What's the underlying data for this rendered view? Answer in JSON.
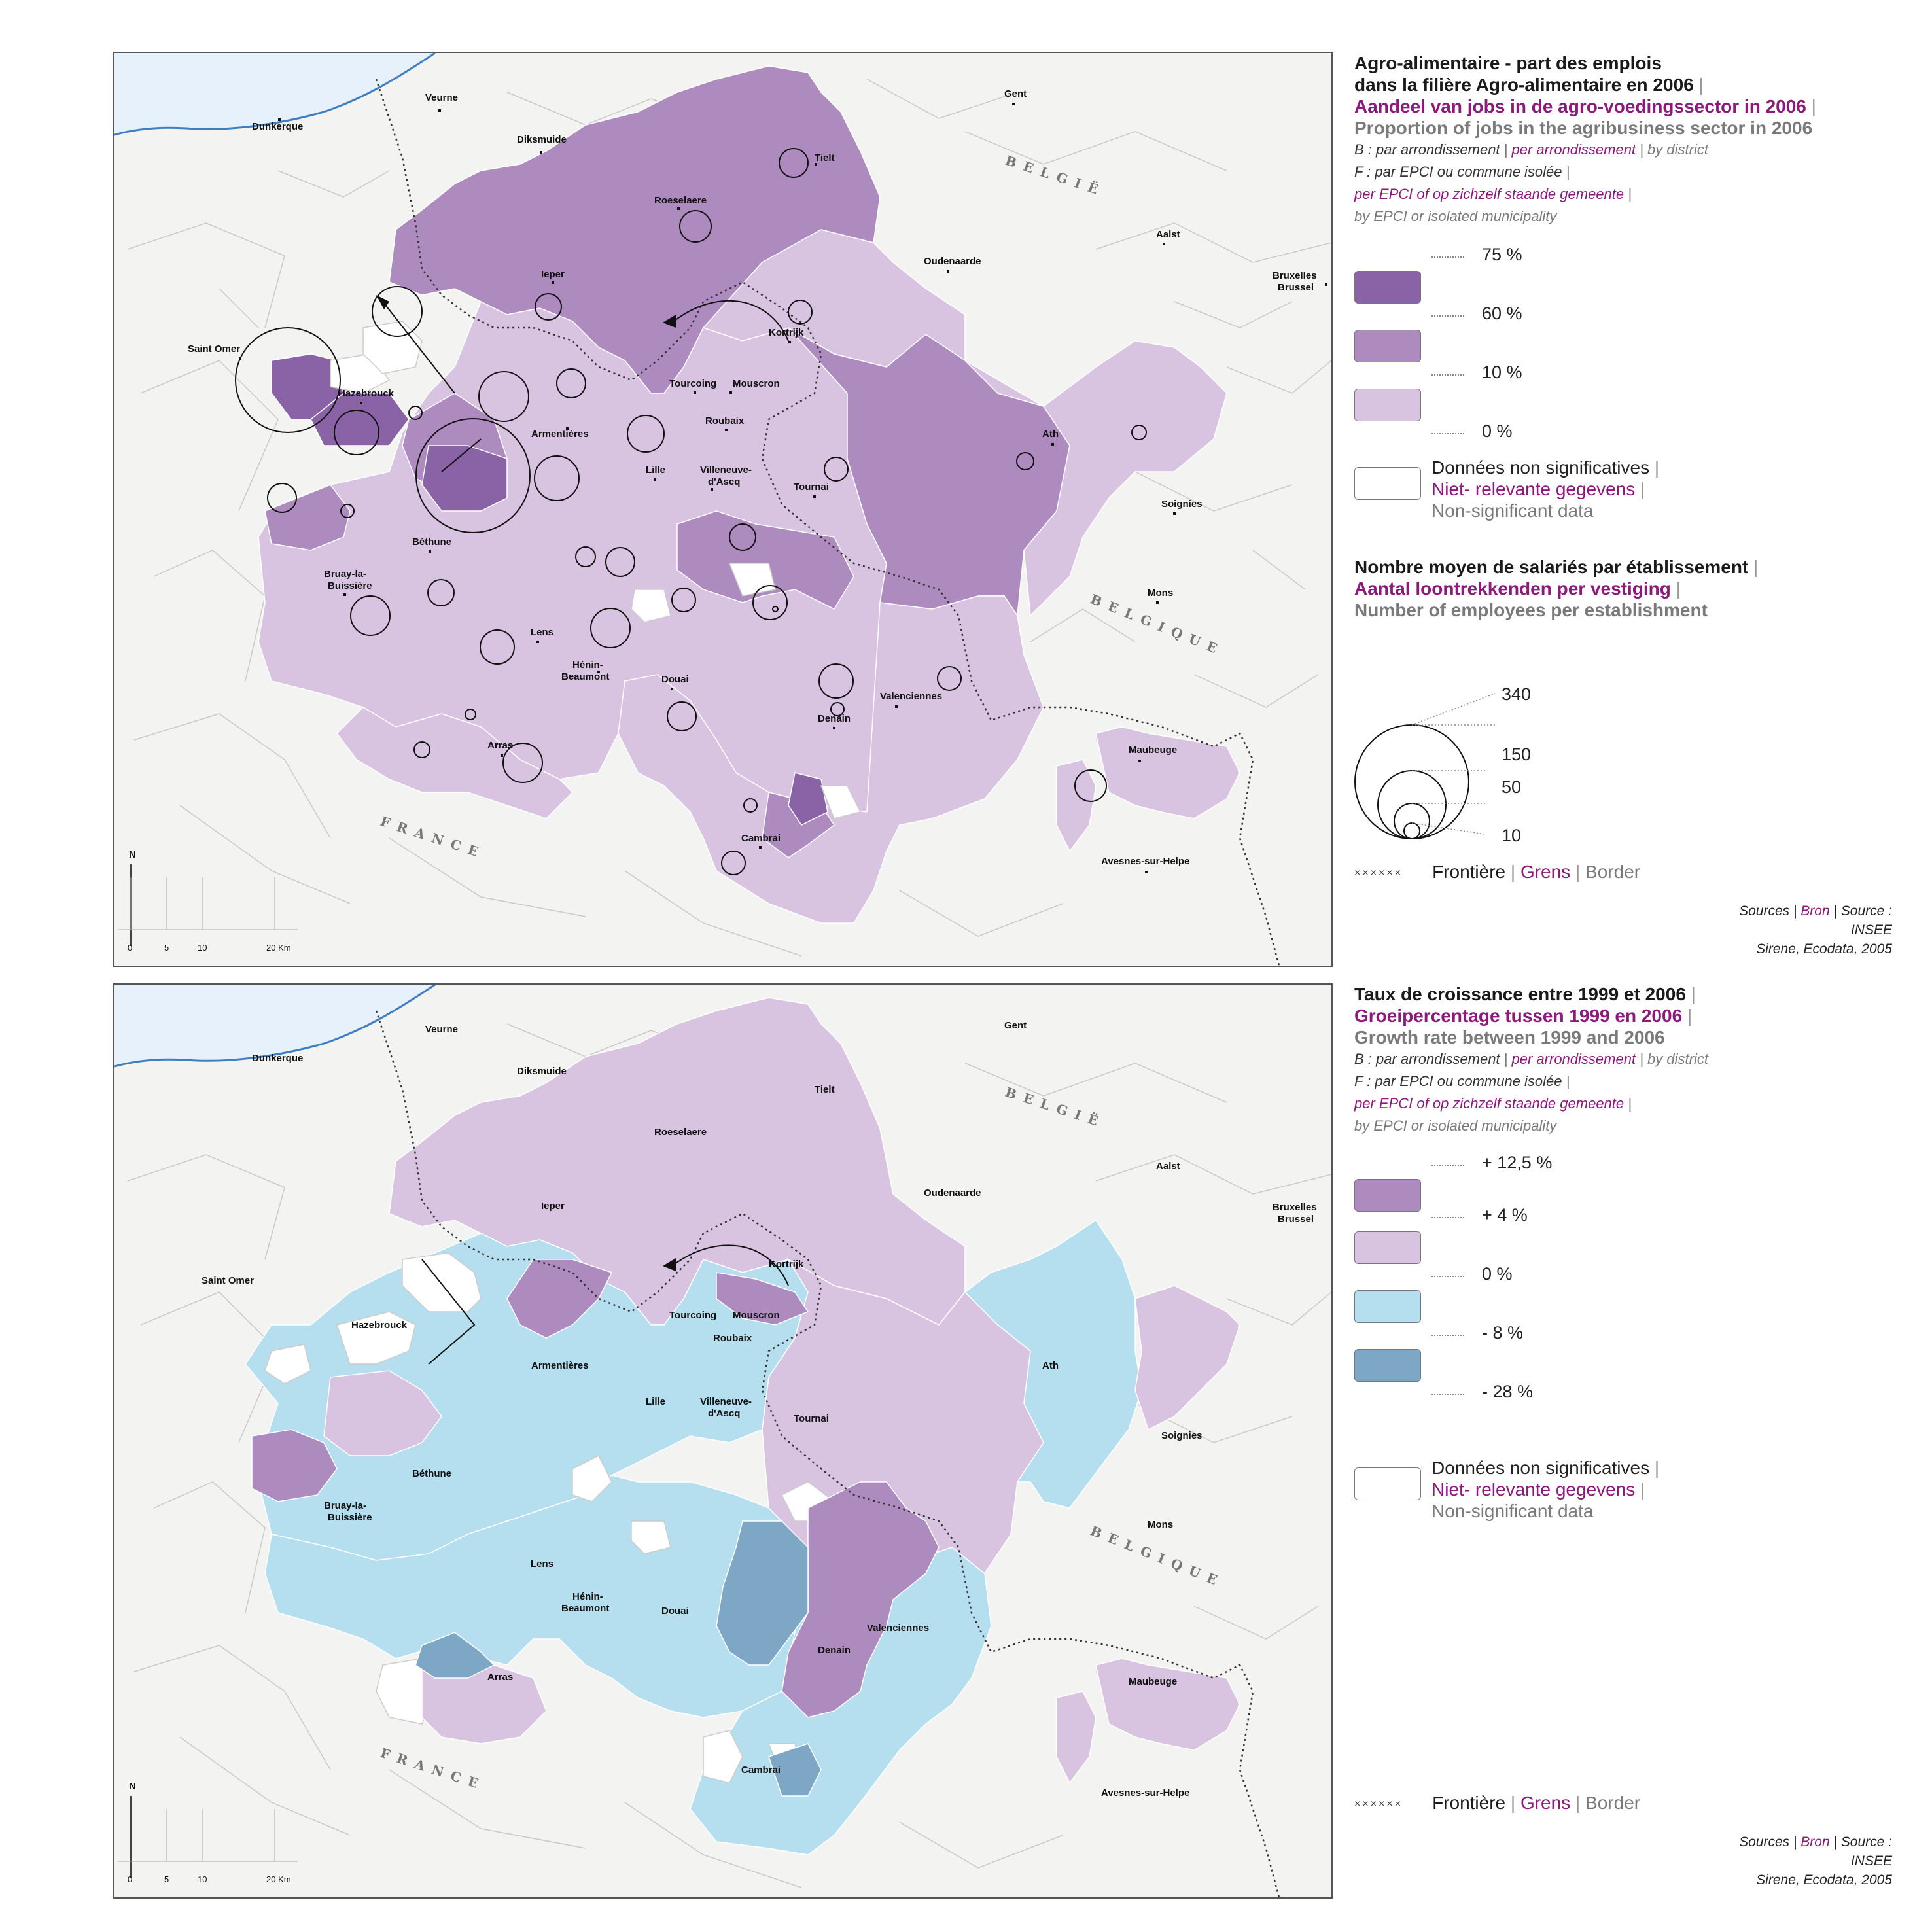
{
  "map1": {
    "legend": {
      "title_fr_1": "Agro-alimentaire - part des emplois",
      "title_fr_2": "dans la filière Agro-alimentaire en 2006",
      "title_nl": "Aandeel van jobs in de agro-voedingssector in 2006",
      "title_en": "Proportion of jobs in the agribusiness sector in 2006",
      "b_fr": "B : par arrondissement",
      "b_nl": "per arrondissement",
      "b_en": "by district",
      "f_fr": "F : par EPCI ou commune isolée",
      "f_nl": "per EPCI of op zichzelf staande gemeente",
      "f_en": "by EPCI or isolated municipality",
      "classes": [
        {
          "label": "75 %",
          "color": "#8a63a6"
        },
        {
          "label": "60 %",
          "color": "#ae8bbf"
        },
        {
          "label": "10 %",
          "color": "#d8c3e0"
        },
        {
          "label": "0 %",
          "color": null
        }
      ],
      "nodata_fr": "Données non significatives",
      "nodata_nl": "Niet- relevante gegevens",
      "nodata_en": "Non-significant data",
      "circles_title_fr": "Nombre moyen de salariés par établissement",
      "circles_title_nl": "Aantal loontrekkenden per vestiging",
      "circles_title_en": "Number of employees per establishment",
      "circle_values": [
        "340",
        "150",
        "50",
        "10"
      ],
      "border_fr": "Frontière",
      "border_nl": "Grens",
      "border_en": "Border",
      "src_1_fr": "Sources",
      "src_1_nl": "Bron",
      "src_1_en": "Source :",
      "src_2": "INSEE",
      "src_3": "Sirene, Ecodata, 2005"
    }
  },
  "map2": {
    "legend": {
      "title_fr": "Taux de croissance entre 1999 et 2006",
      "title_nl": "Groeipercentage tussen 1999 en 2006",
      "title_en": "Growth rate between 1999 and 2006",
      "b_fr": "B : par arrondissement",
      "b_nl": "per arrondissement",
      "b_en": "by district",
      "f_fr": "F : par EPCI ou commune isolée",
      "f_nl": "per EPCI of op zichzelf staande gemeente",
      "f_en": "by EPCI or isolated municipality",
      "classes": [
        {
          "label": "+ 12,5 %",
          "color": "#ae8bbf"
        },
        {
          "label": "+ 4 %",
          "color": "#d8c3e0"
        },
        {
          "label": "0 %",
          "color": "#b5dfee"
        },
        {
          "label": "- 8 %",
          "color": "#7ea7c6"
        },
        {
          "label": "- 28 %",
          "color": null
        }
      ],
      "nodata_fr": "Données non significatives",
      "nodata_nl": "Niet- relevante gegevens",
      "nodata_en": "Non-significant data",
      "border_fr": "Frontière",
      "border_nl": "Grens",
      "border_en": "Border",
      "src_1_fr": "Sources",
      "src_1_nl": "Bron",
      "src_1_en": "Source :",
      "src_2": "INSEE",
      "src_3": "Sirene, Ecodata, 2005"
    }
  },
  "places": {
    "dunkerque": "Dunkerque",
    "veurne": "Veurne",
    "diksmuide": "Diksmuide",
    "gent": "Gent",
    "tielt": "Tielt",
    "roeselaere": "Roeselaere",
    "aalst": "Aalst",
    "oudenaarde": "Oudenaarde",
    "bruxelles_1": "Bruxelles",
    "bruxelles_2": "Brussel",
    "ieper": "Ieper",
    "kortrijk": "Kortrijk",
    "saint_omer": "Saint Omer",
    "tourcoing": "Tourcoing",
    "mouscron": "Mouscron",
    "hazebrouck": "Hazebrouck",
    "armentieres": "Armentières",
    "roubaix": "Roubaix",
    "ath": "Ath",
    "lille": "Lille",
    "villeneuve_1": "Villeneuve-",
    "villeneuve_2": "d'Ascq",
    "tournai": "Tournai",
    "soignies": "Soignies",
    "bethune": "Béthune",
    "bruay_1": "Bruay-la-",
    "bruay_2": "Buissière",
    "mons": "Mons",
    "lens": "Lens",
    "henin_1": "Hénin-",
    "henin_2": "Beaumont",
    "douai": "Douai",
    "valenciennes": "Valenciennes",
    "denain": "Denain",
    "maubeuge": "Maubeuge",
    "arras": "Arras",
    "cambrai": "Cambrai",
    "avesnes": "Avesnes-sur-Helpe",
    "belgie": "BELGIË",
    "belgique": "BELGIQUE",
    "france": "FRANCE"
  },
  "scale": {
    "north": "N",
    "ticks": [
      "0",
      "5",
      "10",
      "20 Km"
    ]
  }
}
